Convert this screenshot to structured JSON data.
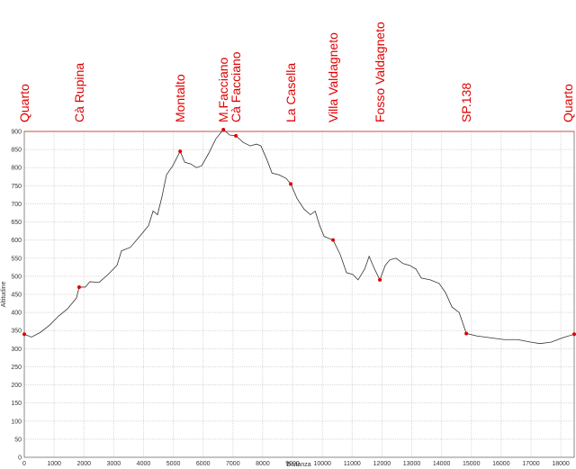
{
  "chart_data": {
    "type": "line",
    "x_label": "Distanza",
    "y_label": "Altitudine",
    "x": [
      0,
      240,
      540,
      850,
      1150,
      1450,
      1750,
      1840,
      2050,
      2200,
      2510,
      2810,
      3110,
      3260,
      3560,
      3870,
      4170,
      4320,
      4470,
      4620,
      4770,
      4980,
      5230,
      5380,
      5590,
      5770,
      5950,
      6190,
      6430,
      6680,
      6890,
      7100,
      7340,
      7580,
      7790,
      7940,
      8150,
      8310,
      8550,
      8790,
      8940,
      9150,
      9390,
      9600,
      9760,
      9910,
      10060,
      10360,
      10600,
      10810,
      11020,
      11200,
      11420,
      11570,
      11750,
      11930,
      12110,
      12260,
      12470,
      12710,
      12930,
      13140,
      13320,
      13620,
      13920,
      14130,
      14350,
      14590,
      14830,
      15190,
      15640,
      16100,
      16550,
      17000,
      17300,
      17670,
      18060,
      18450
    ],
    "values": [
      340,
      332,
      345,
      365,
      390,
      410,
      440,
      470,
      470,
      485,
      483,
      505,
      530,
      570,
      580,
      610,
      640,
      680,
      670,
      720,
      780,
      805,
      845,
      815,
      810,
      800,
      805,
      840,
      880,
      905,
      890,
      888,
      870,
      860,
      865,
      860,
      820,
      785,
      780,
      770,
      755,
      715,
      685,
      670,
      680,
      640,
      610,
      600,
      560,
      510,
      505,
      490,
      520,
      555,
      520,
      490,
      530,
      545,
      550,
      535,
      530,
      520,
      495,
      490,
      480,
      455,
      415,
      400,
      342,
      335,
      330,
      325,
      325,
      318,
      314,
      318,
      330,
      340
    ],
    "color": "#333333",
    "waypoints": [
      {
        "name": "Quarto",
        "distance": 0,
        "elevation": 340
      },
      {
        "name": "Cà Rupina",
        "distance": 1840,
        "elevation": 470
      },
      {
        "name": "Montalto",
        "distance": 5230,
        "elevation": 845
      },
      {
        "name": "M.Facciano",
        "distance": 6680,
        "elevation": 905
      },
      {
        "name": "Cà Facciano",
        "distance": 7100,
        "elevation": 888
      },
      {
        "name": "La Casella",
        "distance": 8940,
        "elevation": 755
      },
      {
        "name": "Villa Valdagneto",
        "distance": 10360,
        "elevation": 600
      },
      {
        "name": "Fosso Valdagneto",
        "distance": 11930,
        "elevation": 490
      },
      {
        "name": "SP.138",
        "distance": 14830,
        "elevation": 342
      },
      {
        "name": "Quarto",
        "distance": 18450,
        "elevation": 340
      }
    ],
    "waypoint_color": "#e00000",
    "xlim": [
      0,
      18450
    ],
    "ylim": [
      0,
      900
    ],
    "xticks": [
      0,
      1000,
      2000,
      3000,
      4000,
      5000,
      6000,
      7000,
      8000,
      9000,
      10000,
      11000,
      12000,
      13000,
      14000,
      15000,
      16000,
      17000,
      18000
    ],
    "yticks": [
      0,
      50,
      100,
      150,
      200,
      250,
      300,
      350,
      400,
      450,
      500,
      550,
      600,
      650,
      700,
      750,
      800,
      850,
      900
    ],
    "grid": true
  }
}
